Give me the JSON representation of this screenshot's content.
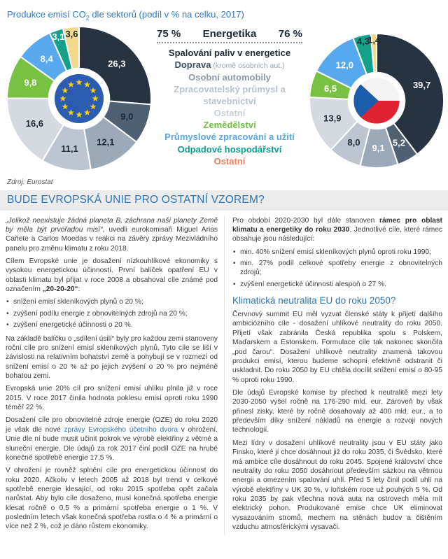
{
  "header": {
    "title_a": "Produkce emisí CO",
    "title_sub": "2",
    "title_b": " dle sektorů (podíl v % na celku, 2017)"
  },
  "source": "Zdroj: Eurostat",
  "section": {
    "heading": "BUDE EVROPSKÁ UNIE PRO OSTATNÍ VZOREM?"
  },
  "legend": {
    "header": {
      "left_pct": "75 %",
      "label": "Energetika",
      "right_pct": "76 %"
    },
    "items": [
      {
        "label": "Spalování paliv v energetice",
        "color": "#1c2835"
      },
      {
        "label": "Doprava",
        "note": " (kromě osobních aut.)",
        "color": "#3c5064",
        "note_color": "#9ba6b0"
      },
      {
        "label": "Osobní automobily",
        "color": "#8c9aab"
      },
      {
        "label": "Zpracovatelský průmysl a stavebnictví",
        "color": "#b9c2cc"
      },
      {
        "label": "Ostatní",
        "color": "#c9d0d8"
      },
      {
        "label": "Zemědělství",
        "color": "#6fbf47"
      },
      {
        "label": "Průmyslové zpracování a užití",
        "color": "#55a7ee"
      },
      {
        "label": "Odpadové hospodářství",
        "color": "#0f9c8c"
      },
      {
        "label": "Ostatní",
        "color": "#ef7d5f"
      }
    ]
  },
  "chart_data": [
    {
      "type": "pie",
      "center_flag": "eu-flag",
      "unit": "% podíl na celkových emisích CO2, 2017",
      "categories": [
        "Spalování paliv v energetice",
        "Doprava (kromě osobních aut.)",
        "Osobní automobily",
        "Zpracovatelský průmysl a stavebnictví",
        "Ostatní",
        "Zemědělství",
        "Průmyslové zpracování a užití",
        "Odpadové hospodářství",
        "Ostatní"
      ],
      "values": [
        26.3,
        9.0,
        12.1,
        11.1,
        16.6,
        9.8,
        8.4,
        3.1,
        3.6
      ],
      "display_values": [
        "26,3",
        "9,0",
        "12,1",
        "11,1",
        "16,6",
        "9,8",
        "8,4",
        "3,1",
        "3,6"
      ],
      "colors": [
        "#273340",
        "#4f6072",
        "#9ca9b8",
        "#bdc6d0",
        "#d5dae0",
        "#79c143",
        "#58a8ee",
        "#13a189",
        "#f5d98b"
      ],
      "label_colors": [
        "#ffffff",
        "#1f2a36",
        "#1f2a36",
        "#1f2a36",
        "#1f2a36",
        "#ffffff",
        "#ffffff",
        "#ffffff",
        "#1f2a36"
      ],
      "energy_total_pct": "75 %"
    },
    {
      "type": "pie",
      "center_flag": "czech-flag",
      "unit": "% podíl na celkových emisích CO2, 2017",
      "categories": [
        "Spalování paliv v energetice",
        "Doprava (kromě osobních aut.)",
        "Osobní automobily",
        "Zpracovatelský průmysl a stavebnictví",
        "Ostatní",
        "Zemědělství",
        "Průmyslové zpracování a užití",
        "Odpadové hospodářství",
        "Ostatní"
      ],
      "values": [
        39.7,
        5.2,
        9.1,
        8.0,
        13.9,
        6.5,
        12.0,
        4.3,
        1.4
      ],
      "display_values": [
        "39,7",
        "5,2",
        "9,1",
        "8,0",
        "13,9",
        "6,5",
        "12,0",
        "4,3",
        "1,4"
      ],
      "colors": [
        "#273340",
        "#4f6072",
        "#9ca9b8",
        "#bdc6d0",
        "#d5dae0",
        "#79c143",
        "#58a8ee",
        "#13a189",
        "#f5d98b"
      ],
      "label_colors": [
        "#ffffff",
        "#ffffff",
        "#ffffff",
        "#1f2a36",
        "#1f2a36",
        "#ffffff",
        "#ffffff",
        "#1f2a36",
        "#1f2a36"
      ],
      "energy_total_pct": "76 %"
    }
  ],
  "columns": {
    "left": {
      "p1_quote": "„Jelikož neexistuje žádná planeta B, záchrana naší planety Země by měla být prvořadou misí“",
      "p1_rest": ", uvedli eurokomisaři Miguel Arias Caňete a Carlos Moedas v reakci na závěry zprávy Mezivládního panelu pro změnu klimatu z roku 2018.",
      "p2_a": "Cílem Evropské unie je dosažení nízkouhlíkové ekonomiky s vysokou energetickou účinností. První balíček opatření EU v oblasti klimatu byl přijat v roce 2008 a obsahoval cíle známé pod označením ",
      "p2_bold": "„20-20-20“",
      "p2_c": ":",
      "bullets": [
        "snížení emisí skleníkových plynů o 20 %;",
        "zvýšení podílu energie z obnovitelných zdrojů na 20 %;",
        "zvýšení energetické účinnosti o 20 %."
      ],
      "p3": "Na základě balíčku o „sdílení úsilí“ byly pro každou zemi stanoveny roční cíle pro snížení emisí skleníkových plynů. Tyto cíle se liší v závislosti na relativním bohatství země a pohybují se v rozmezí od snížení emisí o 20 % až po jejich zvýšení o 20 % pro nejméně bohatou zemi.",
      "p4": "Evropská unie 20% cíl pro snížení emisí uhlíku plnila již v roce 2015. V roce 2017 činila hodnota poklesu emisí oproti roku 1990 téměř 22 %.",
      "p5_a": "Dosažení cíle pro obnovitelné zdroje energie (OZE) do roku 2020 je však dle nové ",
      "p5_link": "zprávy Evropského účetního dvora",
      "p5_c": " v ohrožení. Unie dle ní bude musit učinit pokrok ve výrobě elektřiny z větrné a sluneční energie. Dle údajů za rok 2017 činí podíl OZE na hrubé konečné spotřebě energie 17,5 %.",
      "p6": "V ohrožení je rovněž splnění cíle pro energetickou účinnost do roku 2020. Ačkoliv v letech 2005 až 2018 byl trend v celkové spotřebě energie klesající, od roku 2015 spotřeba opět začala narůstat. Aby bylo cíle dosaženo, musí konečná spotřeba energie klesat ročně o 0,5 % a primární spotřeba energie o 1 %. V posledním letech však konečná spotřeba rostla o 4 % a primární o více než 2 %, což je dáno růstem ekonomiky."
    },
    "right": {
      "p1_a": "Pro období 2020-2030 byl dále stanoven ",
      "p1_bold": "rámec pro oblast klimatu a energetiky do roku 2030",
      "p1_c": ". Jednotlivé cíle, které rámec obsahuje jsou následující:",
      "bullets": [
        "min. 40% snížení emisí skleníkových plynů oproti roku 1990;",
        "min. 27% podíl celkové spotřeby energie z obnovitelných zdrojů;",
        "zvýšení energetické účinnosti alespoň o 27 %."
      ],
      "subheading": "Klimatická neutralita EU do roku 2050?",
      "p2": "Červnový summit EU měl vyzvat členské státy k přijetí dalšího ambiciózního cíle - dosažení uhlíkové neutrality do roku 2050. Přijetí však zabránila Česká republika spolu s Polskem, Maďarskem a Estonskem. Formulace cíle tak nakonec skončila „pod čarou“. Dosažení uhlíkové neutrality znamená takovou produkci emisí, kterou budeme schopni efektivně odstranit či uskladnit. Do roku 2050 by EU chtěla docílit snížení emisí o 80-95 % oproti roku 1990.",
      "p3": "Dle údajů Evropské komise by přechod k neutralitě mezi lety 2030-2050 vyšel ročně na 176-290 mld. eur. Zároveň by však přinesl zisky, které by ročně dosahovaly až 400 mld. eur., a to především díky snížení nákladů na energie a rozvoji nových technologií.",
      "p4": "Mezi lídry v dosažení uhlíkové neutrality jsou v EU státy jako Finsko, které jí chce dosáhnout již do roku 2035, či Švédsko, které má ambice cíle dosáhnout do roku 2045. Spojené království chce neutrality do roku 2050 dosáhnout především sázkou na větrnou energii a omezením spalování uhlí. Před 5 lety činil podíl uhlí na výrobě elektřiny v UK 30 %, v loňském roce už pouhých 5 %. Od roku 2035 by pak všechna nová auta na ostrovech měla mít elektrický pohon. Produkované emise chce UK eliminovat vysazováním stromů, mechem na stěnách budov a čištěním vzduchu atmosférickými vysavači."
    }
  }
}
